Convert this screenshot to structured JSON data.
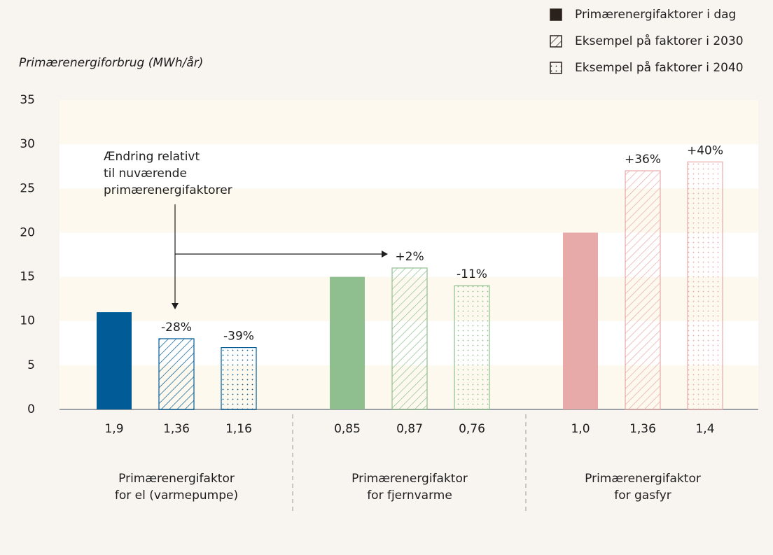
{
  "chart_data": {
    "type": "bar",
    "y_label": "Primærenergiforbrug (MWh/år)",
    "ylim": [
      0,
      35
    ],
    "yticks": [
      0,
      5,
      10,
      15,
      20,
      25,
      30,
      35
    ],
    "categories": [
      "Primærenergifaktor\nfor el (varmepumpe)",
      "Primærenergifaktor\nfor fjernvarme",
      "Primærenergifaktor\nfor gasfyr"
    ],
    "category_colors": [
      "#005b96",
      "#8fbf8f",
      "#e8a9a9"
    ],
    "series": [
      {
        "name": "Primærenergifaktorer i dag",
        "pattern": "solid",
        "color": "#2b211c",
        "values": [
          11,
          15,
          20
        ],
        "factor_labels": [
          "1,9",
          "0,85",
          "1,0"
        ]
      },
      {
        "name": "Eksempel på faktorer i 2030",
        "pattern": "hatch",
        "color": "#2b211c",
        "values": [
          8,
          16,
          27
        ],
        "factor_labels": [
          "1,36",
          "0,87",
          "1,36"
        ],
        "change_labels": [
          "-28%",
          "+2%",
          "+36%"
        ]
      },
      {
        "name": "Eksempel på faktorer i 2040",
        "pattern": "dots",
        "color": "#2b211c",
        "values": [
          7,
          14,
          28
        ],
        "factor_labels": [
          "1,16",
          "0,76",
          "1,4"
        ],
        "change_labels": [
          "-39%",
          "-11%",
          "+40%"
        ]
      }
    ],
    "annotation": [
      "Ændring relativt",
      "til nuværende",
      "primærenergifaktorer"
    ]
  }
}
